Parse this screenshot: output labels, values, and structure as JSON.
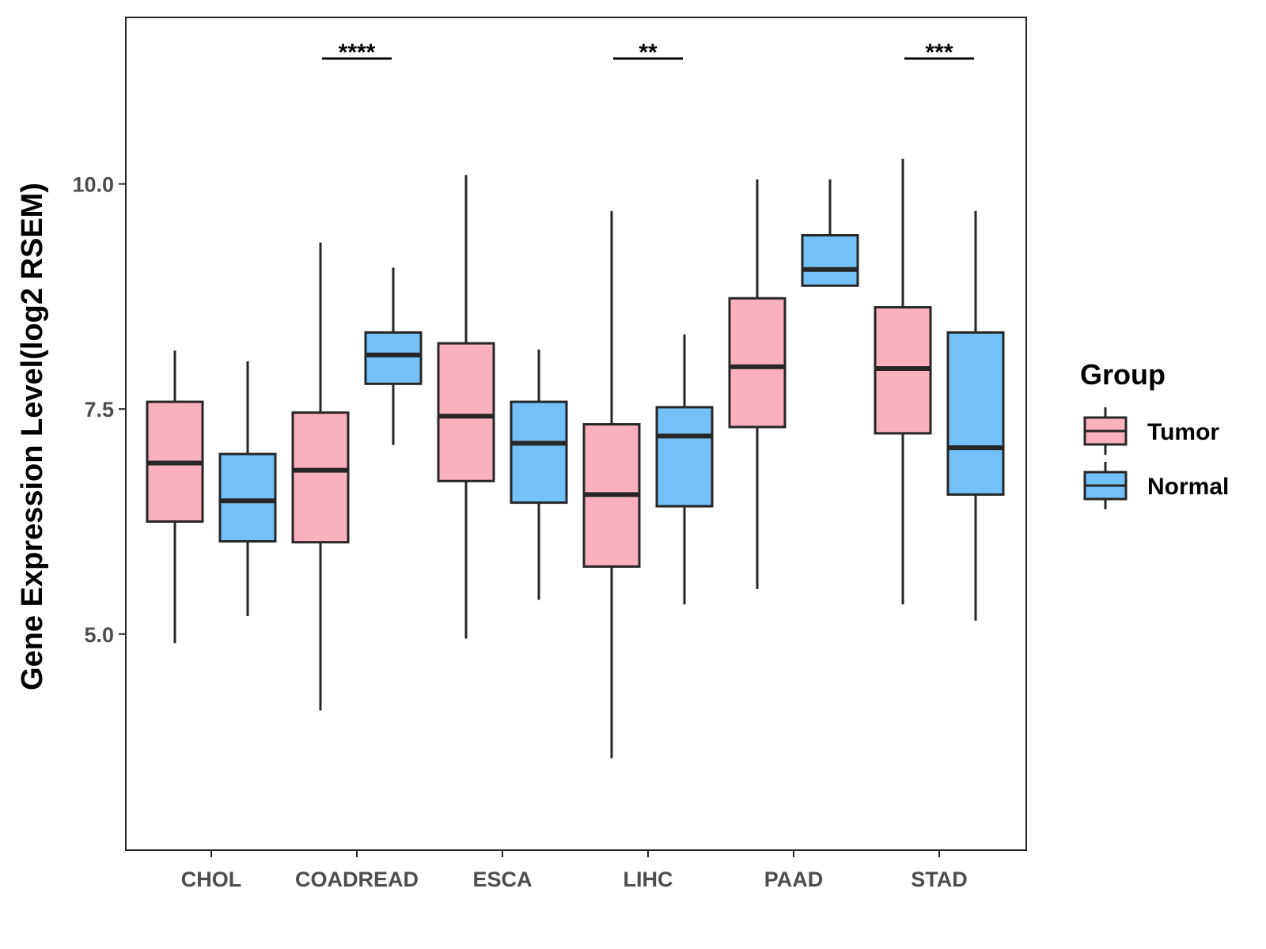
{
  "chart_data": {
    "type": "boxplot",
    "title": "",
    "xlabel": "",
    "ylabel": "Gene Expression Level(log2 RSEM)",
    "y_ticks": [
      5.0,
      7.5,
      10.0
    ],
    "y_tick_labels": [
      "5.0",
      "7.5",
      "10.0"
    ],
    "ylim": [
      2.6,
      11.85
    ],
    "categories": [
      "CHOL",
      "COADREAD",
      "ESCA",
      "LIHC",
      "PAAD",
      "STAD"
    ],
    "legend": {
      "title": "Group",
      "position": "right"
    },
    "series": [
      {
        "name": "Tumor",
        "color": "#FBB0C0",
        "boxes": [
          {
            "whisker_low": 4.9,
            "q1": 6.25,
            "median": 6.9,
            "q3": 7.58,
            "whisker_high": 8.15
          },
          {
            "whisker_low": 4.15,
            "q1": 6.02,
            "median": 6.82,
            "q3": 7.46,
            "whisker_high": 9.35
          },
          {
            "whisker_low": 4.95,
            "q1": 6.7,
            "median": 7.42,
            "q3": 8.23,
            "whisker_high": 10.1
          },
          {
            "whisker_low": 3.62,
            "q1": 5.75,
            "median": 6.55,
            "q3": 7.33,
            "whisker_high": 9.7
          },
          {
            "whisker_low": 5.5,
            "q1": 7.3,
            "median": 7.97,
            "q3": 8.73,
            "whisker_high": 10.05
          },
          {
            "whisker_low": 5.33,
            "q1": 7.23,
            "median": 7.95,
            "q3": 8.63,
            "whisker_high": 10.28
          }
        ]
      },
      {
        "name": "Normal",
        "color": "#74C0F9",
        "boxes": [
          {
            "whisker_low": 5.2,
            "q1": 6.03,
            "median": 6.48,
            "q3": 7.0,
            "whisker_high": 8.03
          },
          {
            "whisker_low": 7.1,
            "q1": 7.78,
            "median": 8.1,
            "q3": 8.35,
            "whisker_high": 9.07
          },
          {
            "whisker_low": 5.38,
            "q1": 6.46,
            "median": 7.12,
            "q3": 7.58,
            "whisker_high": 8.16
          },
          {
            "whisker_low": 5.33,
            "q1": 6.42,
            "median": 7.2,
            "q3": 7.52,
            "whisker_high": 8.33
          },
          {
            "whisker_low": null,
            "q1": 8.87,
            "median": 9.05,
            "q3": 9.43,
            "whisker_high": 10.05
          },
          {
            "whisker_low": 5.15,
            "q1": 6.55,
            "median": 7.07,
            "q3": 8.35,
            "whisker_high": 9.7
          }
        ]
      }
    ],
    "annotations": [
      {
        "category": "COADREAD",
        "label": "****"
      },
      {
        "category": "LIHC",
        "label": "**"
      },
      {
        "category": "STAD",
        "label": "***"
      }
    ]
  }
}
